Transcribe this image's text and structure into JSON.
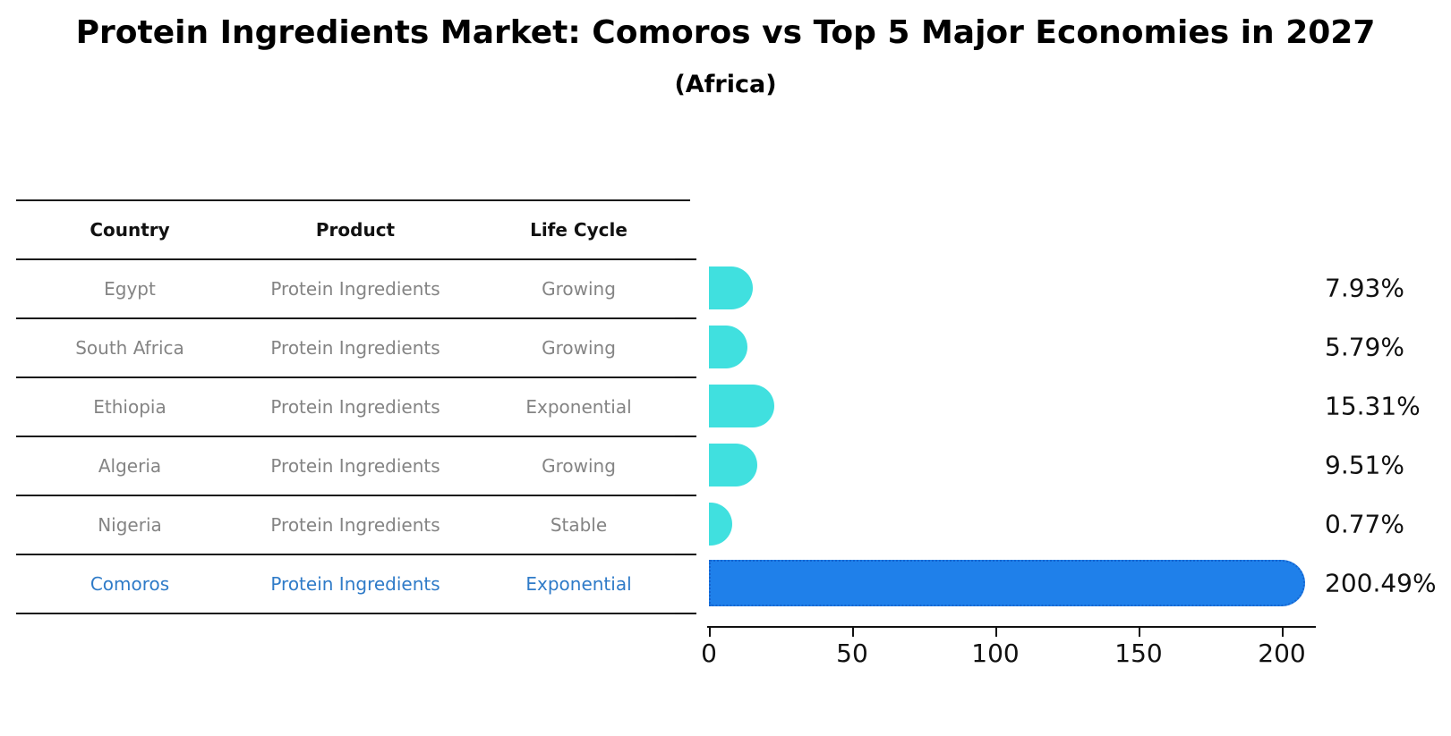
{
  "header": {
    "title": "Protein Ingredients Market: Comoros vs Top 5 Major Economies in 2027",
    "subtitle": "(Africa)"
  },
  "table": {
    "columns": {
      "country": "Country",
      "product": "Product",
      "life_cycle": "Life Cycle"
    },
    "rows": [
      {
        "country": "Egypt",
        "product": "Protein Ingredients",
        "life_cycle": "Growing"
      },
      {
        "country": "South Africa",
        "product": "Protein Ingredients",
        "life_cycle": "Growing"
      },
      {
        "country": "Ethiopia",
        "product": "Protein Ingredients",
        "life_cycle": "Exponential"
      },
      {
        "country": "Algeria",
        "product": "Protein Ingredients",
        "life_cycle": "Growing"
      },
      {
        "country": "Nigeria",
        "product": "Protein Ingredients",
        "life_cycle": "Stable"
      },
      {
        "country": "Comoros",
        "product": "Protein Ingredients",
        "life_cycle": "Exponential"
      }
    ],
    "highlight_row_index": 5
  },
  "chart_data": {
    "type": "bar",
    "orientation": "horizontal",
    "title": "Protein Ingredients Market: Comoros vs Top 5 Major Economies in 2027 (Africa)",
    "categories": [
      "Egypt",
      "South Africa",
      "Ethiopia",
      "Algeria",
      "Nigeria",
      "Comoros"
    ],
    "values": [
      7.93,
      5.79,
      15.31,
      9.51,
      0.77,
      200.49
    ],
    "value_labels": [
      "7.93%",
      "5.79%",
      "15.31%",
      "9.51%",
      "0.77%",
      "200.49%"
    ],
    "highlight_index": 5,
    "x_ticks": [
      0,
      50,
      100,
      150,
      200
    ],
    "xlim": [
      0,
      211
    ],
    "grid": false,
    "legend": "none",
    "colors": {
      "bar": "#40E0DF",
      "highlight_bar": "#1F80EA",
      "highlight_bar_border": "#1565D0",
      "highlight_text": "#2F7BC8",
      "table_text": "#848484",
      "axis_text": "#111111"
    }
  }
}
